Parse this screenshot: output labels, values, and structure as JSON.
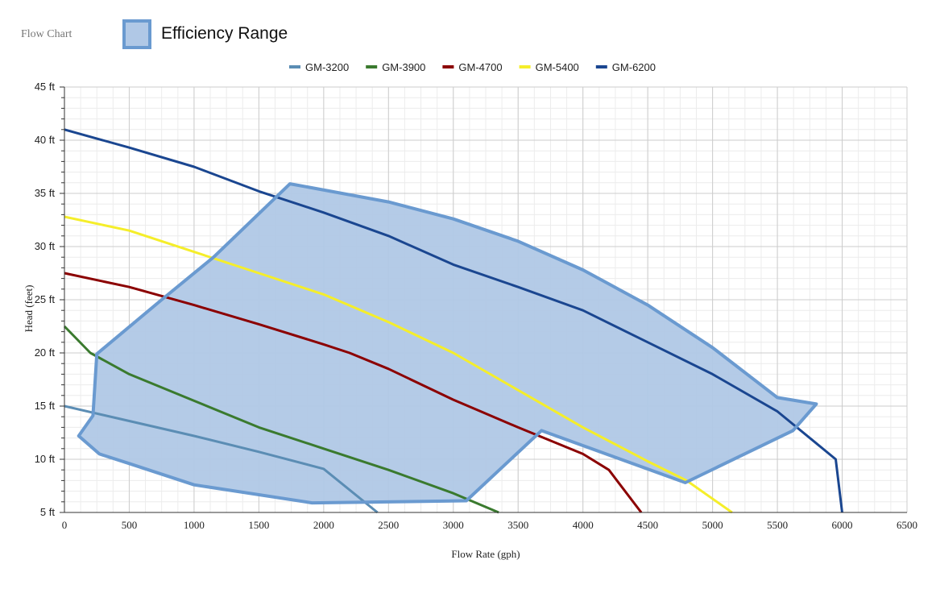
{
  "page": {
    "title": "Flow Chart",
    "efficiency_legend_label": "Efficiency Range"
  },
  "colors": {
    "efficiency_fill": "#b0c8e6",
    "efficiency_stroke": "#6a9ad0",
    "grid_major": "#cccccc",
    "grid_minor": "#ececec",
    "axis": "#333333",
    "text": "#222222"
  },
  "chart_data": {
    "type": "line",
    "xlabel": "Flow Rate (gph)",
    "ylabel": "Head (feet)",
    "xlim": [
      0,
      6500
    ],
    "ylim": [
      5,
      45
    ],
    "x_ticks": [
      0,
      500,
      1000,
      1500,
      2000,
      2500,
      3000,
      3500,
      4000,
      4500,
      5000,
      5500,
      6000,
      6500
    ],
    "x_tick_labels": [
      "0",
      "500",
      "1000",
      "1500",
      "2000",
      "2500",
      "3000",
      "3500",
      "4000",
      "4500",
      "5000",
      "5500",
      "6000",
      "6500"
    ],
    "y_ticks": [
      5,
      10,
      15,
      20,
      25,
      30,
      35,
      40,
      45
    ],
    "y_tick_labels": [
      "5 ft",
      "10 ft",
      "15 ft",
      "20 ft",
      "25 ft",
      "30 ft",
      "35 ft",
      "40 ft",
      "45 ft"
    ],
    "grid": true,
    "legend_position": "top",
    "series": [
      {
        "name": "GM-3200",
        "color": "#5b8db4",
        "points": [
          [
            0,
            15
          ],
          [
            500,
            13.6
          ],
          [
            1000,
            12.2
          ],
          [
            1500,
            10.7
          ],
          [
            2000,
            9.1
          ],
          [
            2415,
            5
          ]
        ]
      },
      {
        "name": "GM-3900",
        "color": "#3a7a2e",
        "points": [
          [
            0,
            22.5
          ],
          [
            200,
            20
          ],
          [
            500,
            18
          ],
          [
            1000,
            15.5
          ],
          [
            1500,
            13
          ],
          [
            2000,
            11
          ],
          [
            2500,
            9
          ],
          [
            3000,
            6.8
          ],
          [
            3350,
            5
          ]
        ]
      },
      {
        "name": "GM-4700",
        "color": "#8b0000",
        "points": [
          [
            0,
            27.5
          ],
          [
            500,
            26.2
          ],
          [
            1000,
            24.5
          ],
          [
            1500,
            22.7
          ],
          [
            2000,
            20.8
          ],
          [
            2200,
            20
          ],
          [
            2500,
            18.5
          ],
          [
            3000,
            15.6
          ],
          [
            3500,
            13
          ],
          [
            4000,
            10.5
          ],
          [
            4200,
            9
          ],
          [
            4450,
            5
          ]
        ]
      },
      {
        "name": "GM-5400",
        "color": "#f5ee2a",
        "points": [
          [
            0,
            32.8
          ],
          [
            500,
            31.5
          ],
          [
            1000,
            29.5
          ],
          [
            1500,
            27.5
          ],
          [
            2000,
            25.5
          ],
          [
            2500,
            22.9
          ],
          [
            3000,
            20
          ],
          [
            3500,
            16.5
          ],
          [
            4000,
            13
          ],
          [
            4500,
            9.8
          ],
          [
            4800,
            8
          ],
          [
            5150,
            5
          ]
        ]
      },
      {
        "name": "GM-6200",
        "color": "#1a4690",
        "points": [
          [
            0,
            41
          ],
          [
            500,
            39.3
          ],
          [
            1000,
            37.5
          ],
          [
            1500,
            35.2
          ],
          [
            2000,
            33.2
          ],
          [
            2500,
            31
          ],
          [
            3000,
            28.3
          ],
          [
            3500,
            26.2
          ],
          [
            4000,
            24
          ],
          [
            4500,
            21
          ],
          [
            5000,
            18
          ],
          [
            5500,
            14.5
          ],
          [
            5800,
            11.5
          ],
          [
            5950,
            10
          ],
          [
            6000,
            5
          ]
        ]
      }
    ],
    "efficiency_range": [
      [
        1740,
        35.9
      ],
      [
        2500,
        34.2
      ],
      [
        3000,
        32.6
      ],
      [
        3500,
        30.5
      ],
      [
        4000,
        27.8
      ],
      [
        4500,
        24.5
      ],
      [
        5000,
        20.5
      ],
      [
        5500,
        15.8
      ],
      [
        5800,
        15.2
      ],
      [
        5620,
        12.7
      ],
      [
        4790,
        7.8
      ],
      [
        3680,
        12.7
      ],
      [
        3100,
        6.1
      ],
      [
        1910,
        5.9
      ],
      [
        1000,
        7.6
      ],
      [
        500,
        9.6
      ],
      [
        270,
        10.5
      ],
      [
        110,
        12.2
      ],
      [
        220,
        14.1
      ],
      [
        250,
        19.9
      ],
      [
        750,
        25
      ],
      [
        1150,
        29
      ],
      [
        1740,
        35.9
      ]
    ]
  }
}
